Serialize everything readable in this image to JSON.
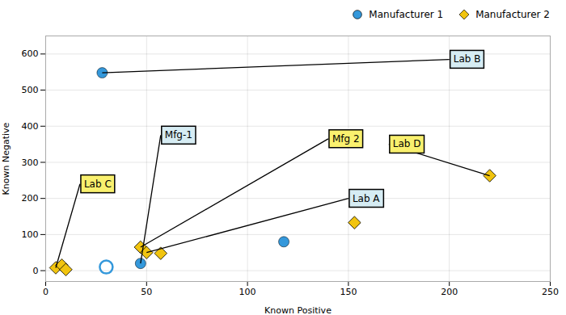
{
  "chart_data": {
    "type": "scatter",
    "xlabel": "Known Positive",
    "ylabel": "Known Negative",
    "xlim": [
      0,
      250
    ],
    "ylim": [
      -30,
      650
    ],
    "xticks": [
      0,
      50,
      100,
      150,
      200,
      250
    ],
    "yticks": [
      0,
      100,
      200,
      300,
      400,
      500,
      600
    ],
    "grid": true,
    "legend": "upper right",
    "series": [
      {
        "name": "Manufacturer 1",
        "color": "#3498db",
        "marker": "circle",
        "x": [
          28,
          47,
          118
        ],
        "values": [
          548,
          20,
          80
        ]
      },
      {
        "color": "#3498db",
        "marker": "open circle",
        "x": [
          30
        ],
        "values": [
          10
        ]
      },
      {
        "name": "Manufacturer 2",
        "color": "#f1c40f",
        "marker": "diamond",
        "x": [
          5,
          8,
          10,
          47,
          50,
          57,
          153,
          220
        ],
        "values": [
          8,
          15,
          3,
          65,
          50,
          48,
          133,
          263
        ]
      }
    ],
    "annotations": [
      {
        "text": "Lab B",
        "x": 28,
        "y": 548,
        "text_x": 200,
        "text_y": 585,
        "color": "#d6ecf3"
      },
      {
        "text": "Mfg-1",
        "x": 47,
        "y": 20,
        "text_x": 57,
        "text_y": 375,
        "color": "#d6ecf3"
      },
      {
        "text": "Lab C",
        "x": 5,
        "y": 8,
        "text_x": 17,
        "text_y": 240,
        "color": "#f9f06e"
      },
      {
        "text": "Mfg 2",
        "x": 47,
        "y": 65,
        "text_x": 140,
        "text_y": 365,
        "color": "#f9f06e"
      },
      {
        "text": "Lab A",
        "x": 50,
        "y": 50,
        "text_x": 150,
        "text_y": 200,
        "color": "#d6ecf3"
      },
      {
        "text": "Lab D",
        "x": 220,
        "y": 263,
        "text_x": 170,
        "text_y": 350,
        "color": "#f9f06e"
      }
    ]
  }
}
